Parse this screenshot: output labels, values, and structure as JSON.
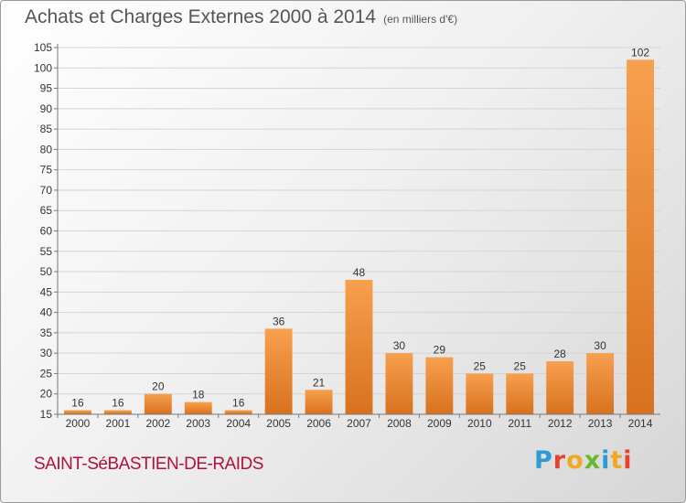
{
  "header": {
    "title": "Achats et Charges Externes 2000 à 2014",
    "unit": "(en milliers d'€)"
  },
  "footer": {
    "commune": "SAINT-SéBASTIEN-DE-RAIDS",
    "logo_letters": [
      "P",
      "r",
      "o",
      "x",
      "i",
      "t",
      "i"
    ],
    "logo_colors": [
      "#2d9ad6",
      "#e8422d",
      "#f2a81e",
      "#6ab82c",
      "#2d9ad6",
      "#f2a81e",
      "#e8422d"
    ]
  },
  "chart_data": {
    "type": "bar",
    "title": "Achats et Charges Externes 2000 à 2014",
    "subtitle": "(en milliers d'€)",
    "xlabel": "",
    "ylabel": "",
    "categories": [
      "2000",
      "2001",
      "2002",
      "2003",
      "2004",
      "2005",
      "2006",
      "2007",
      "2008",
      "2009",
      "2010",
      "2011",
      "2012",
      "2013",
      "2014"
    ],
    "values": [
      16,
      16,
      20,
      18,
      16,
      36,
      21,
      48,
      30,
      29,
      25,
      25,
      28,
      30,
      102
    ],
    "ylim": [
      15,
      105
    ],
    "yticks": [
      15,
      20,
      25,
      30,
      35,
      40,
      45,
      50,
      55,
      60,
      65,
      70,
      75,
      80,
      85,
      90,
      95,
      100,
      105
    ],
    "grid": true,
    "legend": "none",
    "colors": {
      "bar_light": "#f7a04e",
      "bar_dark": "#d8711e",
      "grid": "#d4d4d4",
      "axis": "#777777"
    }
  }
}
